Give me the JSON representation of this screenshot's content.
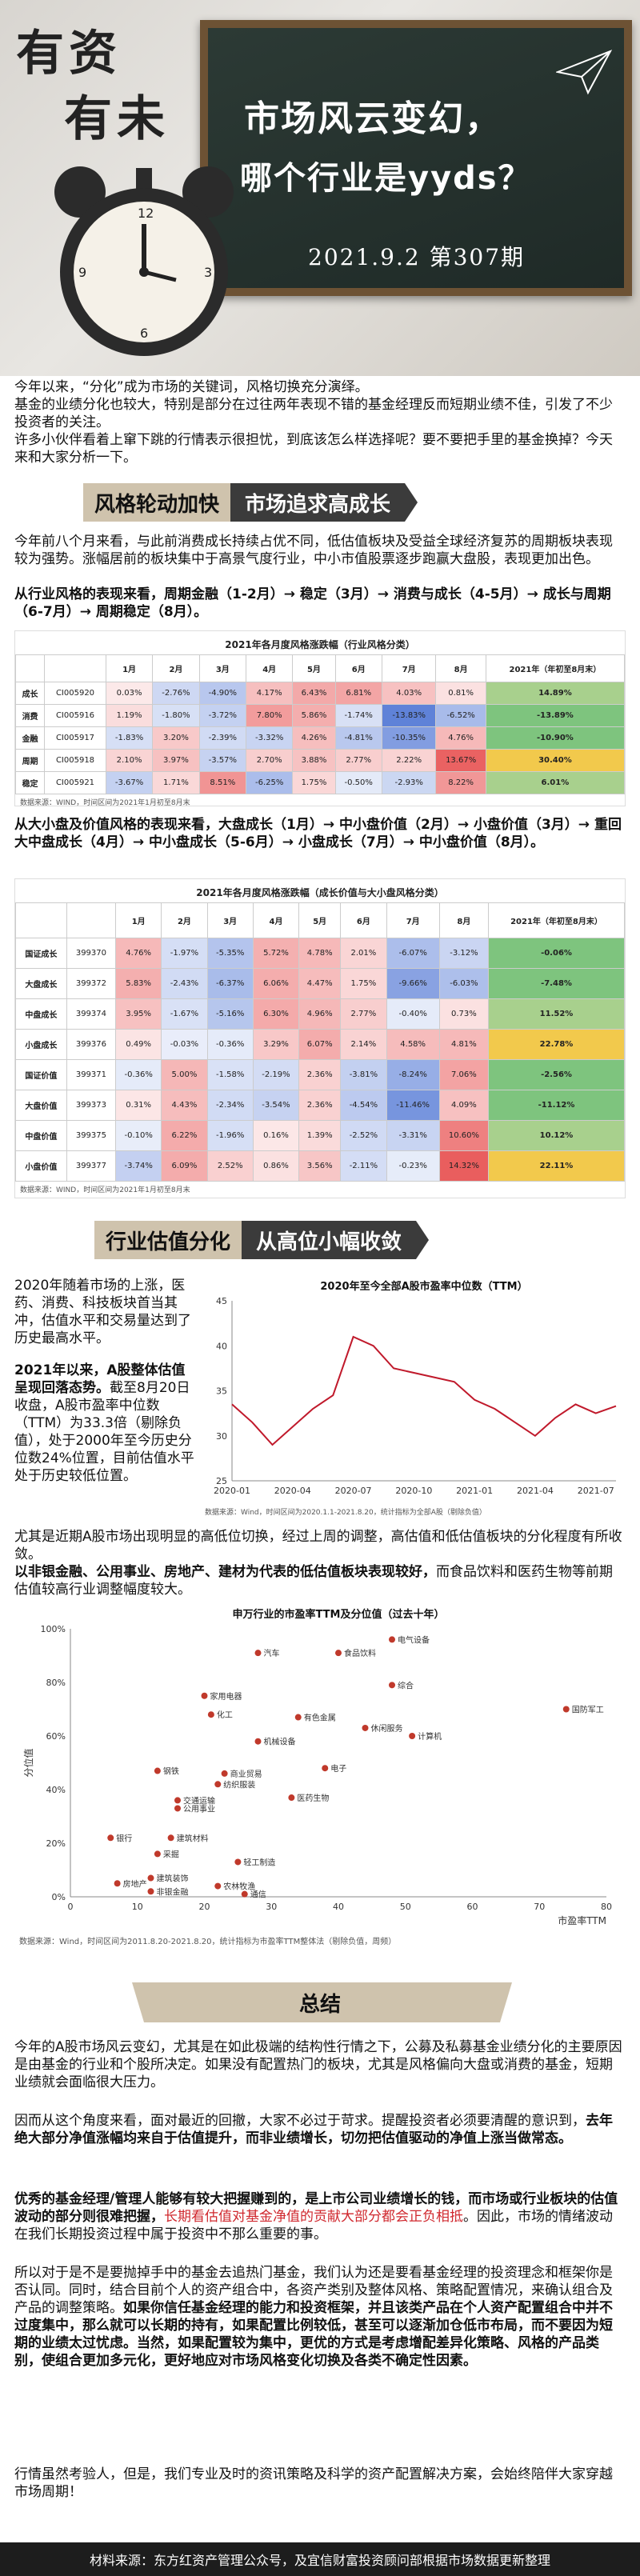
{
  "hero": {
    "brand_a": "有资",
    "brand_b": "有未",
    "title1": "市场风云变幻，",
    "title2": "哪个行业是yyds？",
    "date": "2021.9.2 第307期"
  },
  "intro": {
    "p1": "今年以来，“分化”成为市场的关键词，风格切换充分演绎。",
    "p2": "基金的业绩分化也较大，特别是部分在过往两年表现不错的基金经理反而短期业绩不佳，引发了不少投资者的关注。",
    "p3": "许多小伙伴看着上窜下跳的行情表示很担忧，到底该怎么样选择呢？要不要把手里的基金换掉？今天来和大家分析一下。"
  },
  "section1": {
    "band_left": "风格轮动加快",
    "band_right": "市场追求高成长",
    "p1": "今年前八个月来看，与此前消费成长持续占优不同，低估值板块及受益全球经济复苏的周期板块表现较为强势。涨幅居前的板块集中于高景气度行业，中小市值股票逐步跑赢大盘股，表现更加出色。",
    "p2": "从行业风格的表现来看，周期金融（1-2月）→ 稳定（3月）→ 消费与成长（4-5月）→ 成长与周期（6-7月）→ 周期稳定（8月）。",
    "p3": "从大小盘及价值风格的表现来看，大盘成长（1月）→ 中小盘价值（2月）→ 小盘价值（3月）→ 重回大中盘成长（4月）→ 中小盘成长（5-6月）→ 小盘成长（7月）→ 中小盘价值（8月）。"
  },
  "table1": {
    "title": "2021年各月度风格涨跌幅（行业风格分类）",
    "headers": [
      "",
      "",
      "1月",
      "2月",
      "3月",
      "4月",
      "5月",
      "6月",
      "7月",
      "8月",
      "2021年（年初至8月末）"
    ],
    "rows": [
      {
        "name": "成长",
        "code": "CI005920",
        "v": [
          "0.03%",
          "-2.76%",
          "-4.90%",
          "4.17%",
          "6.43%",
          "6.81%",
          "4.03%",
          "0.81%",
          "14.89%"
        ]
      },
      {
        "name": "消费",
        "code": "CI005916",
        "v": [
          "1.19%",
          "-1.80%",
          "-3.72%",
          "7.80%",
          "5.86%",
          "-1.74%",
          "-13.83%",
          "-6.52%",
          "-13.89%"
        ]
      },
      {
        "name": "金融",
        "code": "CI005917",
        "v": [
          "-1.83%",
          "3.20%",
          "-2.39%",
          "-3.32%",
          "4.26%",
          "-4.81%",
          "-10.35%",
          "4.76%",
          "-10.90%"
        ]
      },
      {
        "name": "周期",
        "code": "CI005918",
        "v": [
          "2.10%",
          "3.97%",
          "-3.57%",
          "2.70%",
          "3.88%",
          "2.77%",
          "2.22%",
          "13.67%",
          "30.40%"
        ]
      },
      {
        "name": "稳定",
        "code": "CI005921",
        "v": [
          "-3.67%",
          "1.71%",
          "8.51%",
          "-6.25%",
          "1.75%",
          "-0.50%",
          "-2.93%",
          "8.22%",
          "6.01%"
        ]
      }
    ],
    "source": "数据来源：WIND，时间区间为2021年1月初至8月末"
  },
  "table2": {
    "title": "2021年各月度风格涨跌幅（成长价值与大小盘风格分类）",
    "headers": [
      "",
      "",
      "1月",
      "2月",
      "3月",
      "4月",
      "5月",
      "6月",
      "7月",
      "8月",
      "2021年（年初至8月末）"
    ],
    "rows": [
      {
        "name": "国证成长",
        "code": "399370",
        "v": [
          "4.76%",
          "-1.97%",
          "-5.35%",
          "5.72%",
          "4.78%",
          "2.01%",
          "-6.07%",
          "-3.12%",
          "-0.06%"
        ]
      },
      {
        "name": "大盘成长",
        "code": "399372",
        "v": [
          "5.83%",
          "-2.43%",
          "-6.37%",
          "6.06%",
          "4.47%",
          "1.75%",
          "-9.66%",
          "-6.03%",
          "-7.48%"
        ]
      },
      {
        "name": "中盘成长",
        "code": "399374",
        "v": [
          "3.95%",
          "-1.67%",
          "-5.16%",
          "6.30%",
          "4.96%",
          "2.77%",
          "-0.40%",
          "0.73%",
          "11.52%"
        ]
      },
      {
        "name": "小盘成长",
        "code": "399376",
        "v": [
          "0.49%",
          "-0.03%",
          "-0.36%",
          "3.29%",
          "6.07%",
          "2.14%",
          "4.58%",
          "4.81%",
          "22.78%"
        ]
      },
      {
        "name": "国证价值",
        "code": "399371",
        "v": [
          "-0.36%",
          "5.00%",
          "-1.58%",
          "-2.19%",
          "2.36%",
          "-3.81%",
          "-8.24%",
          "7.06%",
          "-2.56%"
        ]
      },
      {
        "name": "大盘价值",
        "code": "399373",
        "v": [
          "0.31%",
          "4.43%",
          "-2.34%",
          "-3.54%",
          "2.36%",
          "-4.54%",
          "-11.46%",
          "4.09%",
          "-11.12%"
        ]
      },
      {
        "name": "中盘价值",
        "code": "399375",
        "v": [
          "-0.10%",
          "6.22%",
          "-1.96%",
          "0.16%",
          "1.39%",
          "-2.52%",
          "-3.31%",
          "10.60%",
          "10.12%"
        ]
      },
      {
        "name": "小盘价值",
        "code": "399377",
        "v": [
          "-3.74%",
          "6.09%",
          "2.52%",
          "0.86%",
          "3.56%",
          "-2.11%",
          "-0.23%",
          "14.32%",
          "22.11%"
        ]
      }
    ],
    "source": "数据来源：WIND，时间区间为2021年1月初至8月末"
  },
  "section2": {
    "band_left": "行业估值分化",
    "band_right": "从高位小幅收敛",
    "p1": "2020年随着市场的上涨，医药、消费、科技板块首当其冲，估值水平和交易量达到了历史最高水平。",
    "p2_bold": "2021年以来，A股整体估值呈现回落态势。",
    "p2_rest": "截至8月20日收盘，A股市盈率中位数（TTM）为33.3倍（剔除负值），处于2000年至今历史分位数24%位置，目前估值水平处于历史较低位置。",
    "p3": "尤其是近期A股市场出现明显的高低位切换，经过上周的调整，高估值和低估值板块的分化程度有所收敛。",
    "p4_bold": "以非银金融、公用事业、房地产、建材为代表的低估值板块表现较好，",
    "p4_rest": "而食品饮料和医药生物等前期估值较高行业调整幅度较大。"
  },
  "chart_pe": {
    "title": "2020年至今全部A股市盈率中位数（TTM）",
    "source": "数据来源：Wind，时间区间为2020.1.1-2021.8.20，统计指标为全部A股（剔除负值）"
  },
  "chart_data": [
    {
      "type": "line",
      "title": "2020年至今全部A股市盈率中位数（TTM）",
      "xlabel": "",
      "ylabel": "",
      "x": [
        "2020-01",
        "2020-02",
        "2020-03",
        "2020-04",
        "2020-05",
        "2020-06",
        "2020-07",
        "2020-08",
        "2020-09",
        "2020-10",
        "2020-11",
        "2020-12",
        "2021-01",
        "2021-02",
        "2021-03",
        "2021-04",
        "2021-05",
        "2021-06",
        "2021-07",
        "2021-08"
      ],
      "values": [
        33.5,
        31.5,
        29.0,
        31.0,
        33.0,
        34.5,
        41.0,
        40.0,
        37.5,
        37.0,
        36.5,
        36.0,
        34.0,
        33.0,
        31.5,
        30.0,
        32.0,
        33.5,
        32.5,
        33.3
      ],
      "ylim": [
        25,
        45
      ],
      "yticks": [
        25,
        30,
        35,
        40,
        45
      ],
      "xticks": [
        "2020-01",
        "2020-04",
        "2020-07",
        "2020-10",
        "2021-01",
        "2021-04",
        "2021-07"
      ]
    },
    {
      "type": "scatter",
      "title": "申万行业的市盈率TTM及分位值（过去十年）",
      "xlabel": "市盈率TTM",
      "ylabel": "分位值",
      "xlim": [
        0,
        80
      ],
      "ylim": [
        0,
        1
      ],
      "xticks": [
        0,
        10,
        20,
        30,
        40,
        50,
        60,
        70,
        80
      ],
      "yticks": [
        "0%",
        "20%",
        "40%",
        "60%",
        "80%",
        "100%"
      ],
      "points": [
        {
          "label": "电气设备",
          "x": 48,
          "y": 0.96
        },
        {
          "label": "汽车",
          "x": 28,
          "y": 0.91
        },
        {
          "label": "食品饮料",
          "x": 40,
          "y": 0.91
        },
        {
          "label": "家用电器",
          "x": 20,
          "y": 0.75
        },
        {
          "label": "化工",
          "x": 21,
          "y": 0.68
        },
        {
          "label": "综合",
          "x": 48,
          "y": 0.79
        },
        {
          "label": "国防军工",
          "x": 74,
          "y": 0.7
        },
        {
          "label": "有色金属",
          "x": 34,
          "y": 0.67
        },
        {
          "label": "休闲服务",
          "x": 44,
          "y": 0.63
        },
        {
          "label": "计算机",
          "x": 51,
          "y": 0.6
        },
        {
          "label": "机械设备",
          "x": 28,
          "y": 0.58
        },
        {
          "label": "钢铁",
          "x": 13,
          "y": 0.47
        },
        {
          "label": "商业贸易",
          "x": 23,
          "y": 0.46
        },
        {
          "label": "纺织服装",
          "x": 22,
          "y": 0.42
        },
        {
          "label": "电子",
          "x": 38,
          "y": 0.48
        },
        {
          "label": "交通运输",
          "x": 16,
          "y": 0.36
        },
        {
          "label": "公用事业",
          "x": 16,
          "y": 0.33
        },
        {
          "label": "医药生物",
          "x": 33,
          "y": 0.37
        },
        {
          "label": "银行",
          "x": 6,
          "y": 0.22
        },
        {
          "label": "建筑材料",
          "x": 15,
          "y": 0.22
        },
        {
          "label": "采掘",
          "x": 13,
          "y": 0.16
        },
        {
          "label": "轻工制造",
          "x": 25,
          "y": 0.13
        },
        {
          "label": "房地产",
          "x": 7,
          "y": 0.05
        },
        {
          "label": "建筑装饰",
          "x": 12,
          "y": 0.07
        },
        {
          "label": "非银金融",
          "x": 12,
          "y": 0.02
        },
        {
          "label": "农林牧渔",
          "x": 22,
          "y": 0.04
        },
        {
          "label": "通信",
          "x": 26,
          "y": 0.01
        }
      ]
    }
  ],
  "chart_sw": {
    "title": "申万行业的市盈率TTM及分位值（过去十年）",
    "ylabel": "分位值",
    "xlabel": "市盈率TTM",
    "source": "数据来源：Wind，时间区间为2011.8.20-2021.8.20，统计指标为市盈率TTM整体法（剔除负值，周频）"
  },
  "summary": {
    "band": "总结",
    "p1": "今年的A股市场风云变幻，尤其是在如此极端的结构性行情之下，公募及私募基金业绩分化的主要原因是由基金的行业和个股所决定。如果没有配置热门的板块，尤其是风格偏向大盘或消费的基金，短期业绩就会面临很大压力。",
    "p2_a": "因而从这个角度来看，面对最近的回撤，大家不必过于苛求。提醒投资者必须要清醒的意识到，",
    "p2_b": "去年绝大部分净值涨幅均来自于估值提升，而非业绩增长，切勿把估值驱动的净值上涨当做常态。",
    "p3_a": "优秀的基金经理/管理人能够有较大把握赚到的，是上市公司业绩增长的钱，而市场或行业板块的估值波动的部分则很难把握，",
    "p3_b": "长期看估值对基金净值的贡献大部分都会正负相抵",
    "p3_c": "。因此，市场的情绪波动在我们长期投资过程中属于投资中不那么重要的事。",
    "p4_a": "所以对于是不是要抛掉手中的基金去追热门基金，我们认为还是要看基金经理的投资理念和框架你是否认同。同时，结合目前个人的资产组合中，各资产类别及整体风格、策略配置情况，来确认组合及产品的调整策略。",
    "p4_b": "如果你信任基金经理的能力和投资框架，并且该类产品在个人资产配置组合中并不过度集中，那么就可以长期的持有，如果配置比例较低，甚至可以逐渐加仓低市布局，而不要因为短期的业绩太过忧虑。当然，如果配置较为集中，更优的方式是考虑增配差异化策略、风格的产品类别，使组合更加多元化，更好地应对市场风格变化切换及各类不确定性因素。",
    "p5": "行情虽然考验人，但是，我们专业及时的资讯策略及科学的资产配置解决方案，会始终陪伴大家穿越市场周期！"
  },
  "footer": "材料来源：东方红资产管理公众号，及宜信财富投资顾问部根据市场数据更新整理"
}
